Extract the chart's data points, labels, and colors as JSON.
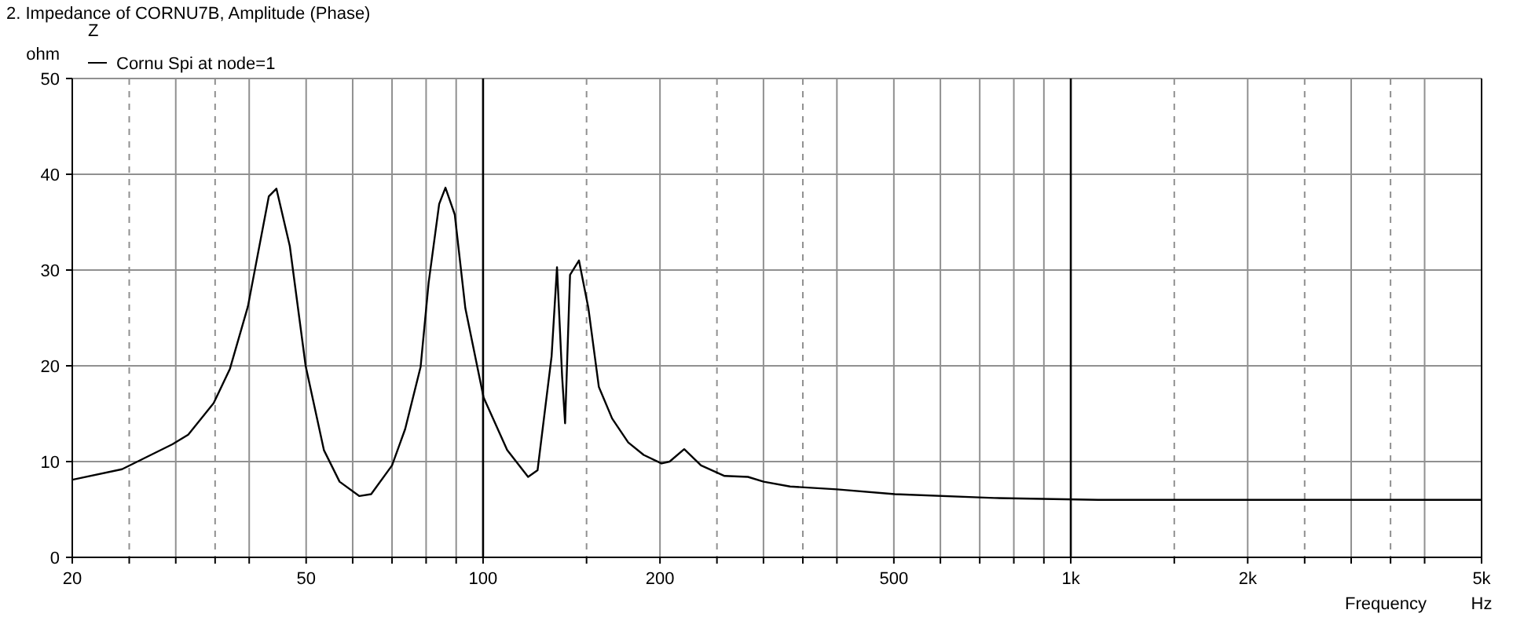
{
  "chart_data": {
    "type": "line",
    "title": "2. Impedance of CORNU7B, Amplitude (Phase)",
    "xlabel": "Frequency",
    "ylabel": "ohm",
    "legend_title": "Z",
    "annotations": [
      "Hz"
    ],
    "log": "x",
    "grid": true,
    "legend": "top left",
    "xlim": [
      20,
      5000
    ],
    "ylim": [
      0,
      50
    ],
    "xticks": [
      20,
      {
        "value": 25,
        "label": null
      },
      {
        "value": 30,
        "label": null
      },
      {
        "value": 35,
        "label": null
      },
      {
        "value": 40,
        "label": null
      },
      50,
      {
        "value": 60,
        "label": null
      },
      {
        "value": 70,
        "label": null
      },
      {
        "value": 80,
        "label": null
      },
      {
        "value": 90,
        "label": null
      },
      100,
      {
        "value": 150,
        "label": null
      },
      200,
      {
        "value": 250,
        "label": null
      },
      {
        "value": 300,
        "label": null
      },
      {
        "value": 350,
        "label": null
      },
      {
        "value": 400,
        "label": null
      },
      500,
      {
        "value": 600,
        "label": null
      },
      {
        "value": 700,
        "label": null
      },
      {
        "value": 800,
        "label": null
      },
      {
        "value": 900,
        "label": null
      },
      {
        "value": 1000,
        "label": "1k"
      },
      {
        "value": 1500,
        "label": null
      },
      {
        "value": 2000,
        "label": "2k"
      },
      {
        "value": 2500,
        "label": null
      },
      {
        "value": 3000,
        "label": null
      },
      {
        "value": 3500,
        "label": null
      },
      {
        "value": 4000,
        "label": null
      },
      {
        "value": 5000,
        "label": "5k"
      }
    ],
    "yticks": [
      0,
      10,
      20,
      30,
      40,
      50
    ],
    "series": [
      {
        "name": "Cornu Spi at node=1",
        "color": "#000000",
        "x": [
          20,
          24.3,
          29.6,
          31.5,
          34.8,
          37.1,
          39.8,
          43.2,
          44.5,
          46.9,
          49.9,
          53.6,
          57,
          61.6,
          64.5,
          70,
          73.7,
          78.3,
          80.8,
          84.2,
          86.3,
          89.5,
          93.3,
          100.2,
          109.9,
          119.3,
          123.8,
          130.8,
          133.6,
          136.3,
          137.9,
          140.6,
          145.6,
          151.1,
          157.4,
          165.8,
          176.6,
          187.6,
          201.2,
          207.7,
          219.9,
          234.9,
          257.6,
          282.3,
          300.2,
          333,
          400,
          502,
          741,
          1113,
          5000
        ],
        "values": [
          8.1,
          9.2,
          11.8,
          12.8,
          16.1,
          19.7,
          26.2,
          37.7,
          38.5,
          32.5,
          20,
          11.2,
          7.9,
          6.4,
          6.6,
          9.6,
          13.4,
          19.9,
          28.7,
          36.9,
          38.6,
          35.8,
          26,
          16.7,
          11.2,
          8.4,
          9.1,
          21,
          30.3,
          18.9,
          14,
          29.5,
          31,
          26,
          17.8,
          14.5,
          12,
          10.7,
          9.8,
          10,
          11.3,
          9.6,
          8.5,
          8.4,
          7.9,
          7.4,
          7.1,
          6.6,
          6.2,
          6,
          6
        ]
      }
    ]
  }
}
